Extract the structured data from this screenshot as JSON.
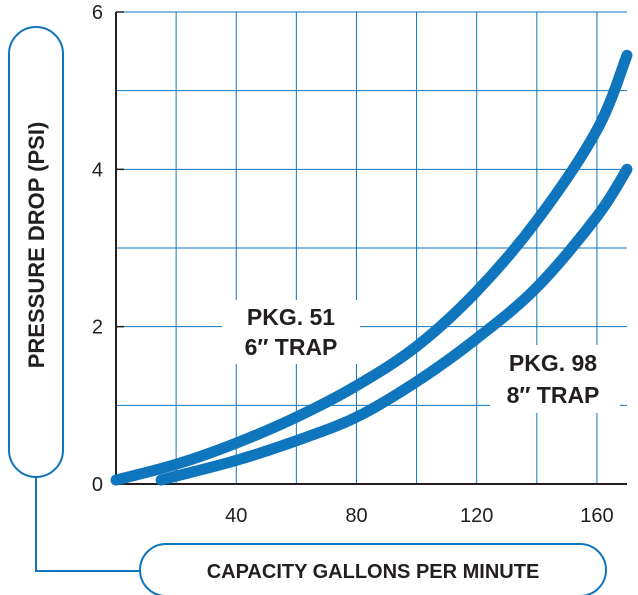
{
  "chart_data": {
    "type": "line",
    "xlabel": "CAPACITY GALLONS PER MINUTE",
    "ylabel": "PRESSURE DROP (PSI)",
    "xlim": [
      0,
      170
    ],
    "ylim": [
      0,
      6
    ],
    "xticks": [
      40,
      80,
      120,
      160
    ],
    "xtick_labels": [
      "40",
      "80",
      "120",
      "160"
    ],
    "yticks": [
      0,
      2,
      4,
      6
    ],
    "ytick_labels": [
      "0",
      "2",
      "4",
      "6"
    ],
    "grid": true,
    "series": [
      {
        "name_lines": [
          "PKG. 51",
          "6″ TRAP"
        ],
        "x": [
          0,
          20,
          40,
          60,
          80,
          100,
          120,
          140,
          160,
          170
        ],
        "y": [
          0.05,
          0.25,
          0.52,
          0.85,
          1.25,
          1.75,
          2.45,
          3.35,
          4.5,
          5.45
        ],
        "color": "#0f75bd"
      },
      {
        "name_lines": [
          "PKG. 98",
          "8″ TRAP"
        ],
        "x": [
          15,
          20,
          40,
          60,
          80,
          100,
          120,
          140,
          160,
          170
        ],
        "y": [
          0.05,
          0.1,
          0.3,
          0.55,
          0.85,
          1.3,
          1.85,
          2.5,
          3.4,
          4.0
        ],
        "color": "#0f75bd"
      }
    ],
    "colors": {
      "curve": "#0f75bd",
      "grid": "#0f75bd",
      "axis": "#231f20",
      "frame": "#0f75bd"
    }
  }
}
